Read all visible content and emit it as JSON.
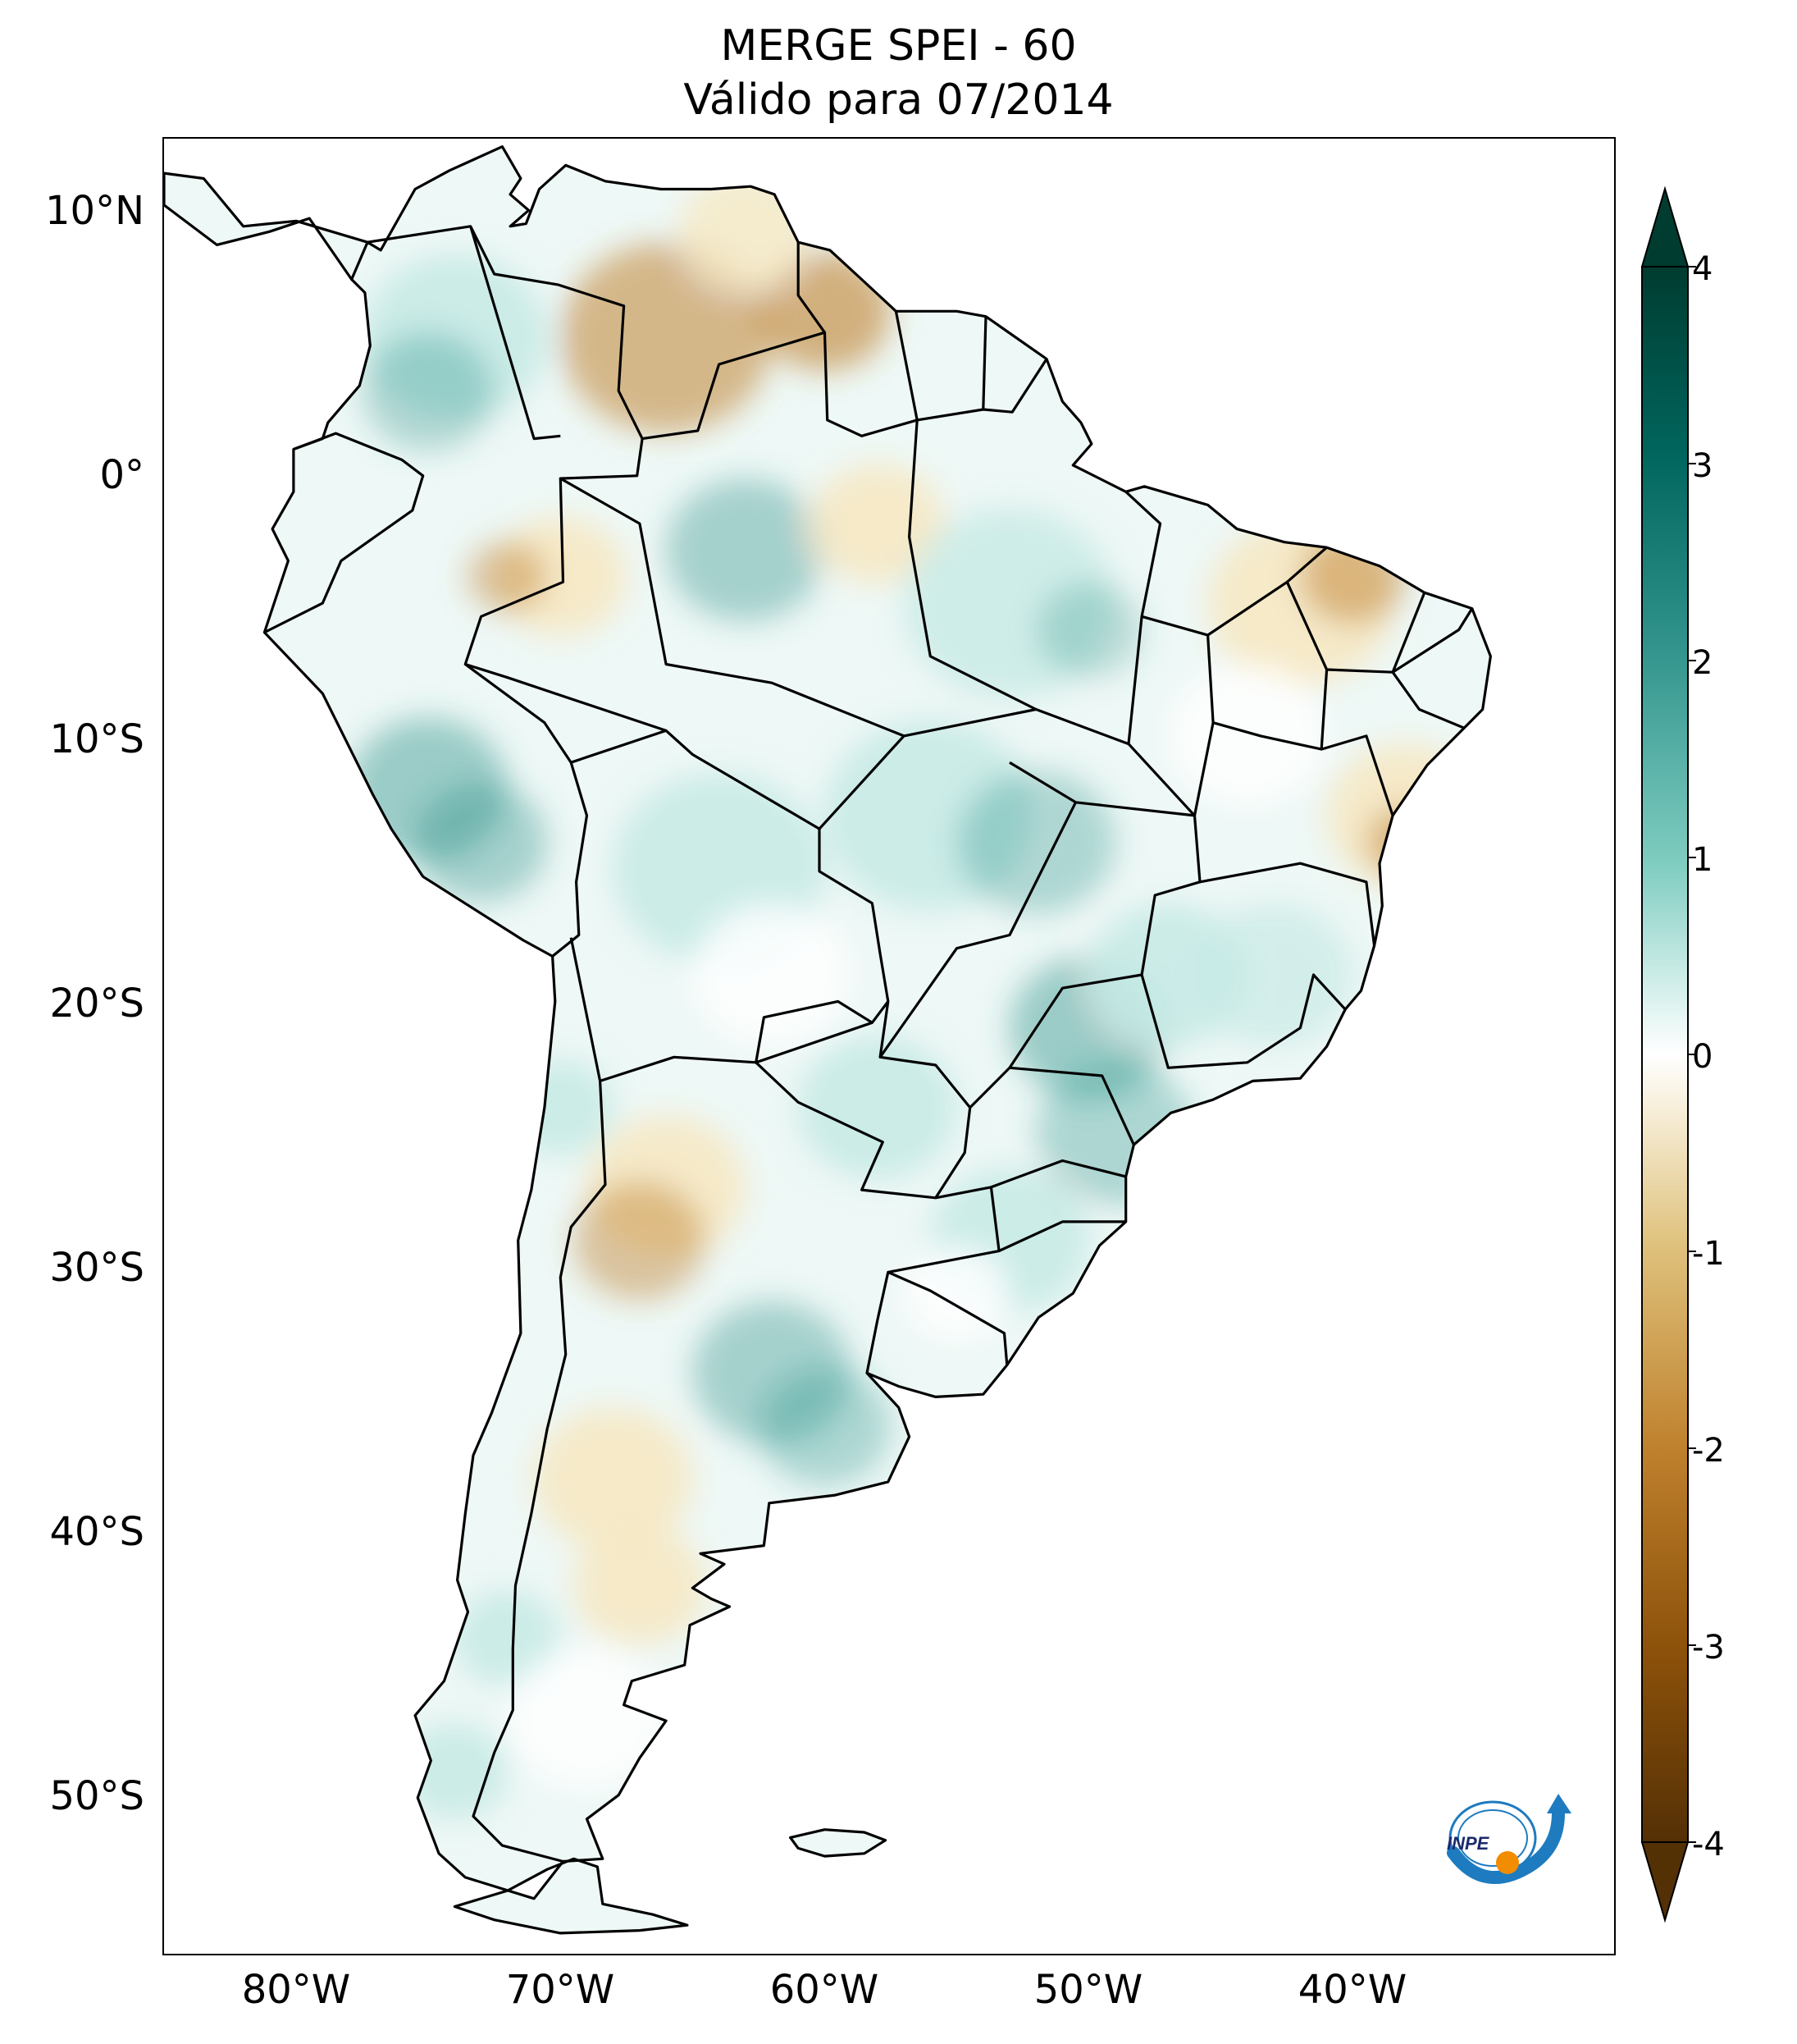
{
  "title": {
    "line1": "MERGE   SPEI - 60",
    "line2": "Válido para 07/2014"
  },
  "axes": {
    "lat_ticks": [
      "10°N",
      "0°",
      "10°S",
      "20°S",
      "30°S",
      "40°S",
      "50°S"
    ],
    "lat_values": [
      10,
      0,
      -10,
      -20,
      -30,
      -40,
      -50
    ],
    "lon_ticks": [
      "80°W",
      "70°W",
      "60°W",
      "50°W",
      "40°W"
    ],
    "lon_values": [
      -80,
      -70,
      -60,
      -50,
      -40
    ],
    "lat_range": [
      -56,
      12.5
    ],
    "lon_range": [
      -85,
      -30
    ]
  },
  "colorbar": {
    "tick_labels": [
      "4",
      "3",
      "2",
      "1",
      "0",
      "-1",
      "-2",
      "-3",
      "-4"
    ],
    "tick_values": [
      4,
      3,
      2,
      1,
      0,
      -1,
      -2,
      -3,
      -4
    ],
    "extend": "both",
    "colormap": "BrBG",
    "colors": {
      "low_end": "#543005",
      "dry": "#bf812d",
      "light_dry": "#f6e8c3",
      "neutral": "#ffffff",
      "light_wet": "#c7eae5",
      "wet": "#35978f",
      "high_end": "#003c30"
    }
  },
  "map_colors": {
    "border": "#000000",
    "wet_pattern": "#c7eae5",
    "dry_pattern": "#e8d29e"
  },
  "logo": {
    "text": "INPE",
    "ring_color": "#1e7bbf",
    "dot_color": "#f28c00"
  }
}
